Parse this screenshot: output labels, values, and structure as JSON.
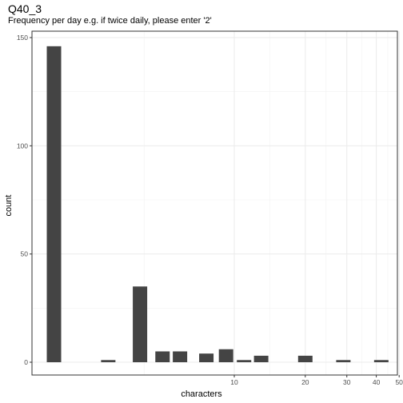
{
  "chart_data": {
    "type": "bar",
    "title": "Q40_3",
    "subtitle": "Frequency per day e.g. if twice daily, please enter '2'",
    "xlabel": "characters",
    "ylabel": "count",
    "x_scale": "log",
    "ylim": [
      0,
      155
    ],
    "y_ticks": [
      0,
      50,
      100,
      150
    ],
    "x_ticks": [
      10,
      20,
      30,
      40,
      50
    ],
    "grid": true,
    "bars": [
      {
        "x": 1,
        "count": 146
      },
      {
        "x": 2,
        "count": 1
      },
      {
        "x": 3,
        "count": 35
      },
      {
        "x": 4,
        "count": 5
      },
      {
        "x": 5,
        "count": 5
      },
      {
        "x": 7,
        "count": 4
      },
      {
        "x": 9,
        "count": 6
      },
      {
        "x": 11,
        "count": 1
      },
      {
        "x": 13,
        "count": 3
      },
      {
        "x": 20,
        "count": 3
      },
      {
        "x": 29,
        "count": 1
      },
      {
        "x": 42,
        "count": 1
      }
    ]
  }
}
